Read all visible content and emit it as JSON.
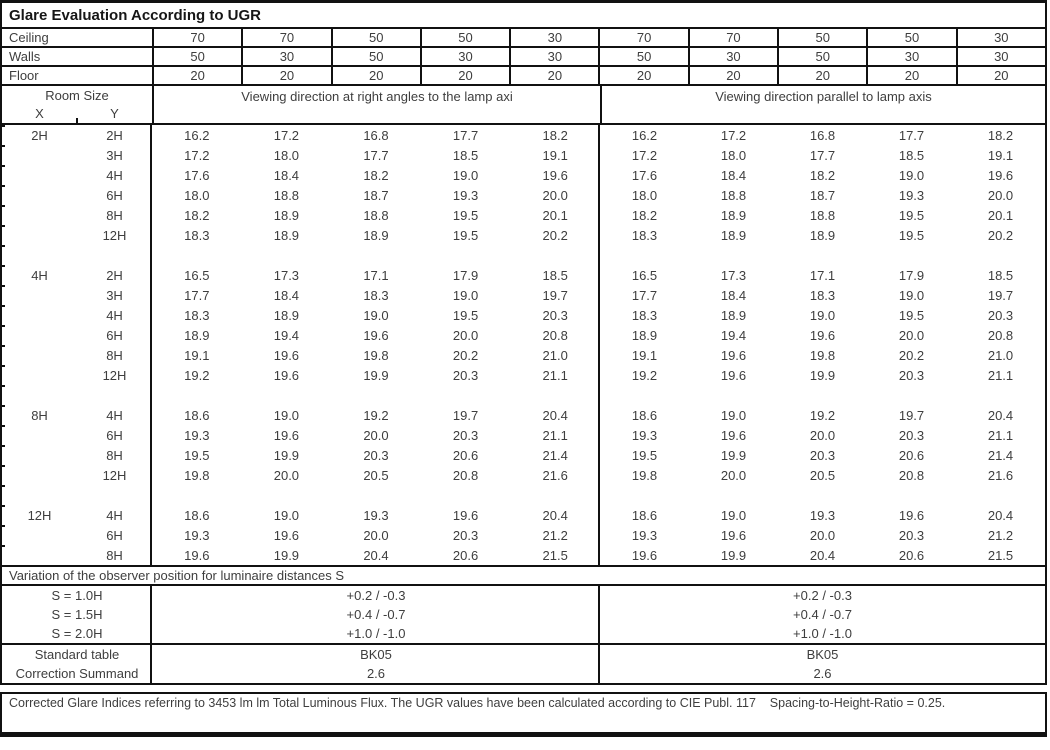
{
  "title": "Glare Evaluation According to UGR",
  "surfaces": {
    "rows": [
      {
        "label": "Ceiling",
        "values": [
          "70",
          "70",
          "50",
          "50",
          "30",
          "70",
          "70",
          "50",
          "50",
          "30"
        ]
      },
      {
        "label": "Walls",
        "values": [
          "50",
          "30",
          "50",
          "30",
          "30",
          "50",
          "30",
          "50",
          "30",
          "30"
        ]
      },
      {
        "label": "Floor",
        "values": [
          "20",
          "20",
          "20",
          "20",
          "20",
          "20",
          "20",
          "20",
          "20",
          "20"
        ]
      }
    ]
  },
  "header": {
    "room_size": "Room Size",
    "x": "X",
    "y": "Y",
    "left": "Viewing direction at right angles to the lamp axi",
    "right": "Viewing direction parallel to lamp axis"
  },
  "ugr_table": {
    "blocks": [
      {
        "x": "2H",
        "rows": [
          {
            "y": "2H",
            "values": [
              "16.2",
              "17.2",
              "16.8",
              "17.7",
              "18.2",
              "16.2",
              "17.2",
              "16.8",
              "17.7",
              "18.2"
            ]
          },
          {
            "y": "3H",
            "values": [
              "17.2",
              "18.0",
              "17.7",
              "18.5",
              "19.1",
              "17.2",
              "18.0",
              "17.7",
              "18.5",
              "19.1"
            ]
          },
          {
            "y": "4H",
            "values": [
              "17.6",
              "18.4",
              "18.2",
              "19.0",
              "19.6",
              "17.6",
              "18.4",
              "18.2",
              "19.0",
              "19.6"
            ]
          },
          {
            "y": "6H",
            "values": [
              "18.0",
              "18.8",
              "18.7",
              "19.3",
              "20.0",
              "18.0",
              "18.8",
              "18.7",
              "19.3",
              "20.0"
            ]
          },
          {
            "y": "8H",
            "values": [
              "18.2",
              "18.9",
              "18.8",
              "19.5",
              "20.1",
              "18.2",
              "18.9",
              "18.8",
              "19.5",
              "20.1"
            ]
          },
          {
            "y": "12H",
            "values": [
              "18.3",
              "18.9",
              "18.9",
              "19.5",
              "20.2",
              "18.3",
              "18.9",
              "18.9",
              "19.5",
              "20.2"
            ]
          }
        ]
      },
      {
        "x": "4H",
        "rows": [
          {
            "y": "2H",
            "values": [
              "16.5",
              "17.3",
              "17.1",
              "17.9",
              "18.5",
              "16.5",
              "17.3",
              "17.1",
              "17.9",
              "18.5"
            ]
          },
          {
            "y": "3H",
            "values": [
              "17.7",
              "18.4",
              "18.3",
              "19.0",
              "19.7",
              "17.7",
              "18.4",
              "18.3",
              "19.0",
              "19.7"
            ]
          },
          {
            "y": "4H",
            "values": [
              "18.3",
              "18.9",
              "19.0",
              "19.5",
              "20.3",
              "18.3",
              "18.9",
              "19.0",
              "19.5",
              "20.3"
            ]
          },
          {
            "y": "6H",
            "values": [
              "18.9",
              "19.4",
              "19.6",
              "20.0",
              "20.8",
              "18.9",
              "19.4",
              "19.6",
              "20.0",
              "20.8"
            ]
          },
          {
            "y": "8H",
            "values": [
              "19.1",
              "19.6",
              "19.8",
              "20.2",
              "21.0",
              "19.1",
              "19.6",
              "19.8",
              "20.2",
              "21.0"
            ]
          },
          {
            "y": "12H",
            "values": [
              "19.2",
              "19.6",
              "19.9",
              "20.3",
              "21.1",
              "19.2",
              "19.6",
              "19.9",
              "20.3",
              "21.1"
            ]
          }
        ]
      },
      {
        "x": "8H",
        "rows": [
          {
            "y": "4H",
            "values": [
              "18.6",
              "19.0",
              "19.2",
              "19.7",
              "20.4",
              "18.6",
              "19.0",
              "19.2",
              "19.7",
              "20.4"
            ]
          },
          {
            "y": "6H",
            "values": [
              "19.3",
              "19.6",
              "20.0",
              "20.3",
              "21.1",
              "19.3",
              "19.6",
              "20.0",
              "20.3",
              "21.1"
            ]
          },
          {
            "y": "8H",
            "values": [
              "19.5",
              "19.9",
              "20.3",
              "20.6",
              "21.4",
              "19.5",
              "19.9",
              "20.3",
              "20.6",
              "21.4"
            ]
          },
          {
            "y": "12H",
            "values": [
              "19.8",
              "20.0",
              "20.5",
              "20.8",
              "21.6",
              "19.8",
              "20.0",
              "20.5",
              "20.8",
              "21.6"
            ]
          }
        ]
      },
      {
        "x": "12H",
        "rows": [
          {
            "y": "4H",
            "values": [
              "18.6",
              "19.0",
              "19.3",
              "19.6",
              "20.4",
              "18.6",
              "19.0",
              "19.3",
              "19.6",
              "20.4"
            ]
          },
          {
            "y": "6H",
            "values": [
              "19.3",
              "19.6",
              "20.0",
              "20.3",
              "21.2",
              "19.3",
              "19.6",
              "20.0",
              "20.3",
              "21.2"
            ]
          },
          {
            "y": "8H",
            "values": [
              "19.6",
              "19.9",
              "20.4",
              "20.6",
              "21.5",
              "19.6",
              "19.9",
              "20.4",
              "20.6",
              "21.5"
            ]
          }
        ]
      }
    ]
  },
  "variation": {
    "heading": "Variation of the observer position for luminaire distances S",
    "rows": [
      {
        "label": "S = 1.0H",
        "left": "+0.2 / -0.3",
        "right": "+0.2 / -0.3"
      },
      {
        "label": "S = 1.5H",
        "left": "+0.4 / -0.7",
        "right": "+0.4 / -0.7"
      },
      {
        "label": "S = 2.0H",
        "left": "+1.0 / -1.0",
        "right": "+1.0 / -1.0"
      }
    ]
  },
  "summary": {
    "rows": [
      {
        "label": "Standard table",
        "left": "BK05",
        "right": "BK05"
      },
      {
        "label": "Correction Summand",
        "left": "2.6",
        "right": "2.6"
      }
    ]
  },
  "footer": "Corrected Glare Indices referring to 3453 lm lm Total Luminous Flux. The UGR values have been calculated according to CIE Publ. 117    Spacing-to-Height-Ratio = 0.25.",
  "colors": {
    "border": "#111111",
    "text": "#3e3e3e",
    "title_text": "#161616",
    "background": "#ffffff"
  }
}
